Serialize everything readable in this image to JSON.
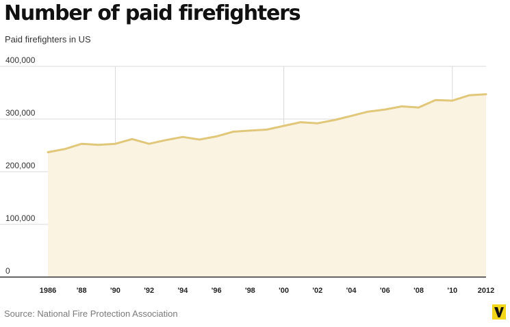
{
  "header": {
    "title": "Number of paid firefighters",
    "subtitle": "Paid firefighters in US"
  },
  "footer": {
    "source": "Source: National Fire Protection Association"
  },
  "logo": {
    "icon": "vox-v-logo-icon",
    "color": "#f2d61a"
  },
  "chart_data": {
    "type": "area",
    "title": "Number of paid firefighters",
    "subtitle": "Paid firefighters in US",
    "xlabel": "",
    "ylabel": "",
    "x": [
      1986,
      1987,
      1988,
      1989,
      1990,
      1991,
      1992,
      1993,
      1994,
      1995,
      1996,
      1997,
      1998,
      1999,
      2000,
      2001,
      2002,
      2003,
      2004,
      2005,
      2006,
      2007,
      2008,
      2009,
      2010,
      2011,
      2012
    ],
    "series": [
      {
        "values": [
          237000,
          243000,
          253000,
          251000,
          253000,
          262000,
          253000,
          260000,
          266000,
          261000,
          267000,
          276000,
          278000,
          280000,
          287000,
          294000,
          292000,
          298000,
          306000,
          314000,
          318000,
          324000,
          322000,
          336000,
          335000,
          345000,
          347000
        ]
      }
    ],
    "ylim": [
      0,
      400000
    ],
    "yticks": [
      0,
      100000,
      200000,
      300000,
      400000
    ],
    "ytick_labels": [
      "0",
      "100,000",
      "200,000",
      "300,000",
      "400,000"
    ],
    "xlim": [
      1986,
      2012
    ],
    "xticks": [
      1986,
      1988,
      1990,
      1992,
      1994,
      1996,
      1998,
      2000,
      2002,
      2004,
      2006,
      2008,
      2010,
      2012
    ],
    "xtick_labels": [
      "1986",
      "'88",
      "'90",
      "'92",
      "'94",
      "'96",
      "'98",
      "'00",
      "'02",
      "'04",
      "'06",
      "'08",
      "'10",
      "2012"
    ],
    "vertical_grid_at": [
      1990,
      2000,
      2010
    ],
    "grid": true,
    "legend": "none",
    "colors": {
      "line": "#e1c779",
      "fill": "#faf3e1",
      "grid": "#d9d9d9",
      "axis": "#333333"
    }
  }
}
